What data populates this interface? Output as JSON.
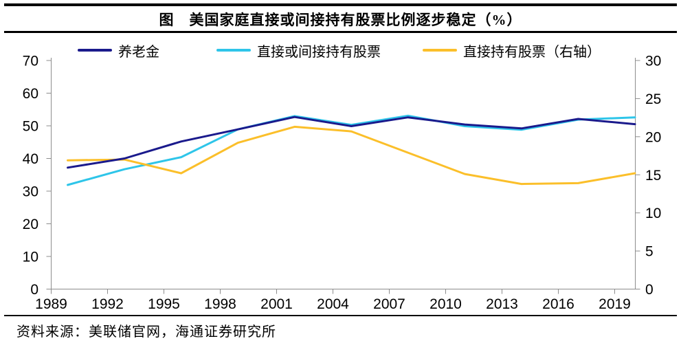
{
  "header": {
    "title": "图　美国家庭直接或间接持有股票比例逐步稳定（%）"
  },
  "legend": [
    {
      "label": "养老金",
      "color": "#1A1A8C"
    },
    {
      "label": "直接或间接持有股票",
      "color": "#2EC5E9"
    },
    {
      "label": "直接持有股票（右轴）",
      "color": "#FBBF2A"
    }
  ],
  "footer": {
    "source": "资料来源：美联储官网，海通证券研究所"
  },
  "colors": {
    "axis": "#8C8C8C",
    "tick_label": "#000000",
    "rule": "#000000"
  },
  "chart_data": {
    "type": "line",
    "title": "美国家庭直接或间接持有股票比例逐步稳定（%）",
    "x": [
      1989,
      1992,
      1995,
      1998,
      2001,
      2004,
      2007,
      2010,
      2013,
      2016,
      2019
    ],
    "x_tick_labels": [
      "1989",
      "1992",
      "1995",
      "1998",
      "2001",
      "2004",
      "2007",
      "2010",
      "2013",
      "2016",
      "2019"
    ],
    "series": [
      {
        "name": "养老金",
        "axis": "left",
        "color": "#1A1A8C",
        "values": [
          37.2,
          40.0,
          45.2,
          48.9,
          52.7,
          49.9,
          52.6,
          50.4,
          49.2,
          52.1,
          50.5
        ]
      },
      {
        "name": "直接或间接持有股票",
        "axis": "left",
        "color": "#2EC5E9",
        "values": [
          31.9,
          36.7,
          40.4,
          48.9,
          53.0,
          50.3,
          53.1,
          49.9,
          48.8,
          51.9,
          52.6
        ]
      },
      {
        "name": "直接持有股票（右轴）",
        "axis": "right",
        "color": "#FBBF2A",
        "values": [
          16.9,
          17.0,
          15.2,
          19.2,
          21.3,
          20.7,
          17.9,
          15.1,
          13.8,
          13.9,
          15.2
        ]
      }
    ],
    "left_axis": {
      "min": 0,
      "max": 70,
      "step": 10
    },
    "right_axis": {
      "min": 0,
      "max": 30,
      "step": 5
    },
    "grid": false,
    "legend_position": "top"
  }
}
